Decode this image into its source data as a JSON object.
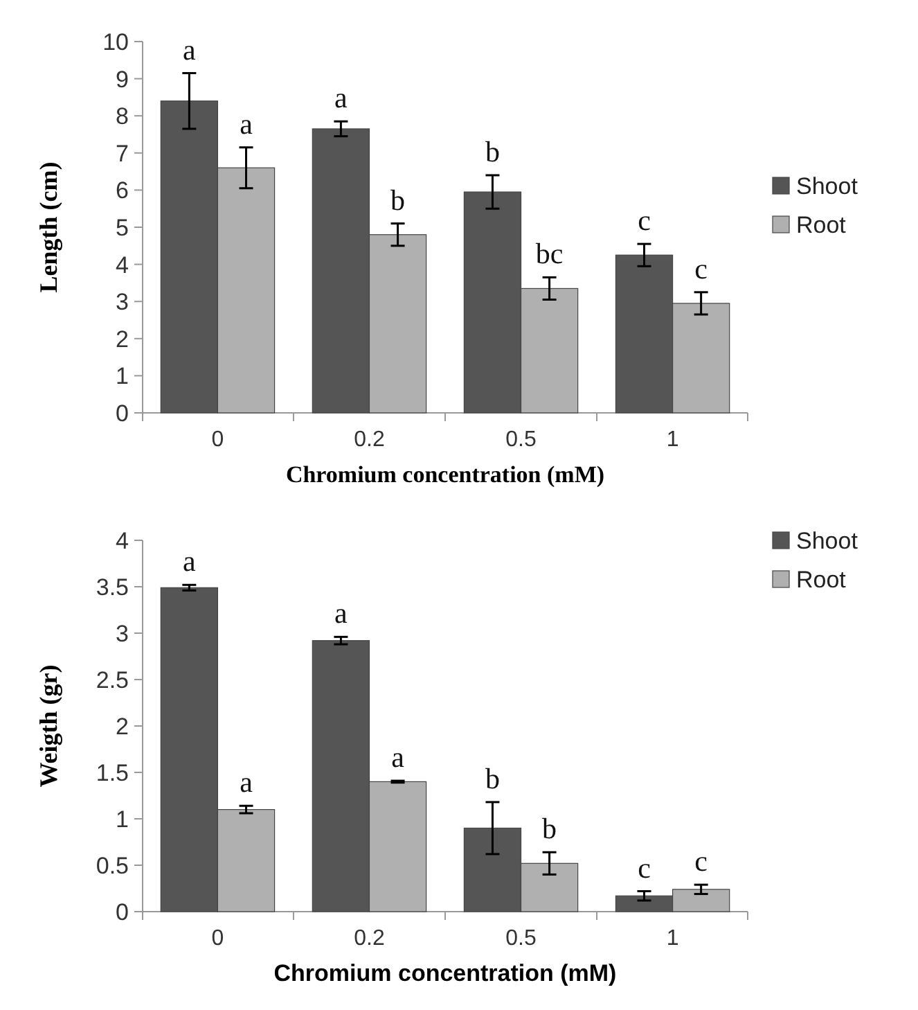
{
  "chart_data": [
    {
      "type": "bar",
      "xlabel": "Chromium concentration (mM)",
      "ylabel": "Length (cm)",
      "categories": [
        "0",
        "0.2",
        "0.5",
        "1"
      ],
      "ylim": [
        0,
        10
      ],
      "yticks": [
        0,
        1,
        2,
        3,
        4,
        5,
        6,
        7,
        8,
        9,
        10
      ],
      "grid": false,
      "legend": "right",
      "series": [
        {
          "name": "Shoot",
          "color": "#555555",
          "values": [
            8.4,
            7.65,
            5.95,
            4.25
          ],
          "errors": [
            0.75,
            0.2,
            0.45,
            0.3
          ]
        },
        {
          "name": "Root",
          "color": "#b0b0b0",
          "values": [
            6.6,
            4.8,
            3.35,
            2.95
          ],
          "errors": [
            0.55,
            0.3,
            0.3,
            0.3
          ]
        }
      ],
      "annotations": [
        {
          "text": "a",
          "x": "0",
          "y": 8.4
        },
        {
          "text": "a",
          "x": "0",
          "y": 6.6
        },
        {
          "text": "a",
          "x": "0.2",
          "y": 7.65
        },
        {
          "text": "b",
          "x": "0.2",
          "y": 4.8
        },
        {
          "text": "b",
          "x": "0.5",
          "y": 5.95
        },
        {
          "text": "bc",
          "x": "0.5",
          "y": 3.35
        },
        {
          "text": "c",
          "x": "1",
          "y": 4.25
        },
        {
          "text": "c",
          "x": "1",
          "y": 2.95
        }
      ]
    },
    {
      "type": "bar",
      "xlabel": "Chromium concentration (mM)",
      "ylabel": "Weigth (gr)",
      "categories": [
        "0",
        "0.2",
        "0.5",
        "1"
      ],
      "ylim": [
        0,
        4
      ],
      "yticks": [
        0,
        {
          "value": 0.5,
          "label": "0.5"
        },
        1,
        {
          "value": 1.5,
          "label": "1.5"
        },
        2,
        {
          "value": 2.5,
          "label": "2.5"
        },
        3,
        {
          "value": 3.5,
          "label": "3.5"
        },
        4
      ],
      "grid": false,
      "legend": "top right",
      "series": [
        {
          "name": "Shoot",
          "color": "#555555",
          "values": [
            3.49,
            2.92,
            0.9,
            0.17
          ],
          "errors": [
            0.03,
            0.04,
            0.28,
            0.05
          ]
        },
        {
          "name": "Root",
          "color": "#b0b0b0",
          "values": [
            1.1,
            1.4,
            0.52,
            0.24
          ],
          "errors": [
            0.04,
            0.01,
            0.12,
            0.05
          ]
        }
      ],
      "annotations": [
        {
          "text": "a",
          "x": "0",
          "y": 3.49
        },
        {
          "text": "a",
          "x": "0",
          "y": 1.1
        },
        {
          "text": "a",
          "x": "0.2",
          "y": 2.92
        },
        {
          "text": "a",
          "x": "0.2",
          "y": 1.4
        },
        {
          "text": "b",
          "x": "0.5",
          "y": 0.9
        },
        {
          "text": "b",
          "x": "0.5",
          "y": 0.52
        },
        {
          "text": "c",
          "x": "1",
          "y": 0.17
        },
        {
          "text": "c",
          "x": "1",
          "y": 0.24
        }
      ]
    }
  ]
}
